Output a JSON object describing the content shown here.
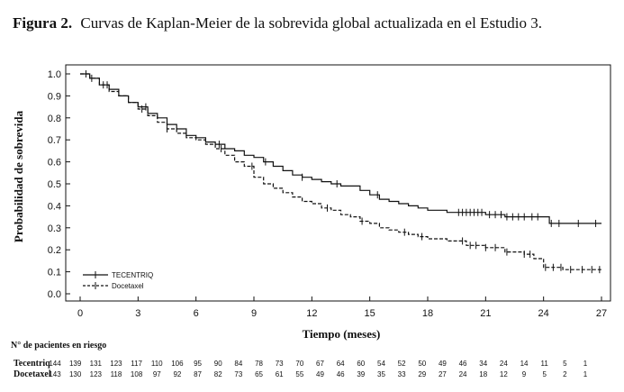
{
  "figure": {
    "label": "Figura 2.",
    "caption": "Curvas de Kaplan-Meier de la sobrevida global actualizada en el Estudio 3."
  },
  "chart_data": {
    "type": "line",
    "subtype": "kaplan-meier",
    "xlabel": "Tiempo (meses)",
    "ylabel": "Probabilidad de sobrevida",
    "xlim": [
      0,
      27
    ],
    "ylim": [
      0,
      1
    ],
    "xticks": [
      "0",
      "3",
      "6",
      "9",
      "12",
      "15",
      "18",
      "21",
      "24",
      "27"
    ],
    "yticks": [
      "0.0",
      "0.1",
      "0.2",
      "0.3",
      "0.4",
      "0.5",
      "0.6",
      "0.7",
      "0.8",
      "0.9",
      "1.0"
    ],
    "legend_position": "bottom-left",
    "series": [
      {
        "name": "TECENTRIQ",
        "style": "solid",
        "color": "#111111",
        "x": [
          0,
          0.5,
          1,
          1.5,
          2,
          2.5,
          3,
          3.5,
          4,
          4.5,
          5,
          5.5,
          6,
          6.5,
          7,
          7.5,
          8,
          8.5,
          9,
          9.5,
          10,
          10.5,
          11,
          11.5,
          12,
          12.5,
          13,
          13.5,
          14,
          14.5,
          15,
          15.5,
          16,
          16.5,
          17,
          17.5,
          18,
          19,
          20,
          21,
          22,
          23,
          24,
          24.3,
          25,
          26,
          27
        ],
        "y": [
          1.0,
          0.98,
          0.95,
          0.93,
          0.9,
          0.87,
          0.85,
          0.82,
          0.8,
          0.77,
          0.75,
          0.72,
          0.71,
          0.69,
          0.68,
          0.66,
          0.65,
          0.63,
          0.62,
          0.6,
          0.58,
          0.56,
          0.54,
          0.53,
          0.52,
          0.51,
          0.5,
          0.49,
          0.49,
          0.47,
          0.45,
          0.43,
          0.42,
          0.41,
          0.4,
          0.39,
          0.38,
          0.37,
          0.37,
          0.36,
          0.35,
          0.35,
          0.35,
          0.32,
          0.32,
          0.32,
          0.32
        ]
      },
      {
        "name": "Docetaxel",
        "style": "dashed",
        "color": "#111111",
        "x": [
          0,
          0.5,
          1,
          1.5,
          2,
          2.5,
          3,
          3.5,
          4,
          4.5,
          5,
          5.5,
          6,
          6.5,
          7,
          7.5,
          8,
          8.5,
          9,
          9.5,
          10,
          10.5,
          11,
          11.5,
          12,
          12.5,
          13,
          13.5,
          14,
          14.5,
          15,
          15.5,
          16,
          16.5,
          17,
          17.5,
          18,
          19,
          20,
          21,
          22,
          23,
          23.5,
          24,
          25,
          26,
          27
        ],
        "y": [
          1.0,
          0.98,
          0.95,
          0.92,
          0.9,
          0.87,
          0.84,
          0.81,
          0.78,
          0.75,
          0.73,
          0.71,
          0.7,
          0.68,
          0.66,
          0.63,
          0.6,
          0.58,
          0.53,
          0.5,
          0.48,
          0.46,
          0.44,
          0.42,
          0.41,
          0.39,
          0.38,
          0.36,
          0.35,
          0.33,
          0.32,
          0.3,
          0.29,
          0.28,
          0.27,
          0.26,
          0.25,
          0.24,
          0.22,
          0.21,
          0.19,
          0.18,
          0.16,
          0.12,
          0.11,
          0.11,
          0.11
        ]
      }
    ],
    "censor_x": {
      "TECENTRIQ": [
        0.3,
        1.2,
        3.4,
        7.2,
        9.6,
        11.5,
        13.3,
        15.4,
        19.6,
        19.8,
        20.0,
        20.2,
        20.4,
        20.6,
        20.8,
        21.2,
        21.5,
        21.8,
        22.1,
        22.4,
        22.7,
        23.0,
        23.4,
        23.7,
        24.4,
        24.8,
        25.8,
        26.7
      ],
      "Docetaxel": [
        0.6,
        1.4,
        3.2,
        4.5,
        7.3,
        8.9,
        12.8,
        14.6,
        16.8,
        17.7,
        19.8,
        20.2,
        20.5,
        21.0,
        21.5,
        22.1,
        23.0,
        23.3,
        24.1,
        24.5,
        24.9,
        25.4,
        26.0,
        26.5,
        26.9
      ]
    },
    "risk_table": {
      "title": "N° de pacientes en riesgo",
      "rows": [
        {
          "label": "Tecentriq",
          "counts": [
            "144",
            "139",
            "131",
            "123",
            "117",
            "110",
            "106",
            "95",
            "90",
            "84",
            "78",
            "73",
            "70",
            "67",
            "64",
            "60",
            "54",
            "52",
            "50",
            "49",
            "46",
            "34",
            "24",
            "14",
            "11",
            "5",
            "1"
          ]
        },
        {
          "label": "Docetaxel",
          "counts": [
            "143",
            "130",
            "123",
            "118",
            "108",
            "97",
            "92",
            "87",
            "82",
            "73",
            "65",
            "61",
            "55",
            "49",
            "46",
            "39",
            "35",
            "33",
            "29",
            "27",
            "24",
            "18",
            "12",
            "9",
            "5",
            "2",
            "1"
          ]
        }
      ]
    }
  }
}
